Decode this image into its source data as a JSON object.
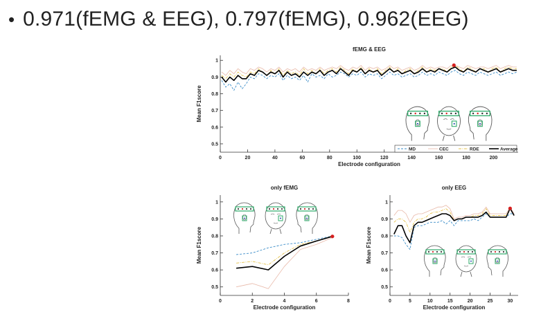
{
  "slide": {
    "bullet": "•",
    "title": "0.971(fEMG & EEG), 0.797(fEMG), 0.962(EEG)"
  },
  "colors": {
    "MD": "#3a8cc8",
    "CEC": "#e8b8a8",
    "RDE": "#e6c24a",
    "Average": "#000000",
    "highlight": "#d62020",
    "electrode_box": "#2eaa6a"
  },
  "icons": [
    "head-side-left-icon",
    "head-front-icon",
    "head-side-right-icon"
  ],
  "chart_data": [
    {
      "id": "combined",
      "type": "line",
      "title": "fEMG & EEG",
      "xlabel": "Electrode configuration",
      "ylabel": "Mean F1score",
      "xlim": [
        0,
        218
      ],
      "ylim": [
        0.45,
        1.03
      ],
      "xticks": [
        0,
        20,
        40,
        60,
        80,
        100,
        120,
        140,
        160,
        180,
        200
      ],
      "yticks": [
        0.5,
        0.6,
        0.7,
        0.8,
        0.9,
        1
      ],
      "ytick_labels": [
        "0.5",
        "0.6",
        "0.7",
        "0.8",
        "0.9",
        "1"
      ],
      "legend": {
        "position": "bottom-right",
        "entries": [
          "MD",
          "CEC",
          "RDE",
          "Average"
        ]
      },
      "highlight": {
        "x": 171,
        "y": 0.971
      },
      "series": [
        {
          "name": "MD",
          "style": "dashed",
          "x": [
            1,
            4,
            7,
            10,
            13,
            16,
            19,
            22,
            25,
            28,
            31,
            34,
            37,
            40,
            43,
            46,
            49,
            52,
            55,
            58,
            61,
            64,
            67,
            70,
            73,
            76,
            79,
            82,
            85,
            88,
            91,
            94,
            97,
            100,
            103,
            106,
            109,
            112,
            115,
            118,
            121,
            124,
            127,
            130,
            133,
            136,
            139,
            142,
            145,
            148,
            151,
            154,
            157,
            160,
            163,
            166,
            169,
            172,
            175,
            178,
            181,
            184,
            187,
            190,
            193,
            196,
            199,
            202,
            205,
            208,
            211,
            214,
            217
          ],
          "y": [
            0.88,
            0.84,
            0.86,
            0.82,
            0.87,
            0.83,
            0.86,
            0.9,
            0.89,
            0.92,
            0.91,
            0.89,
            0.91,
            0.9,
            0.92,
            0.88,
            0.91,
            0.89,
            0.9,
            0.88,
            0.91,
            0.87,
            0.92,
            0.9,
            0.91,
            0.89,
            0.92,
            0.9,
            0.91,
            0.93,
            0.92,
            0.9,
            0.92,
            0.91,
            0.93,
            0.9,
            0.92,
            0.91,
            0.92,
            0.89,
            0.91,
            0.93,
            0.91,
            0.92,
            0.9,
            0.91,
            0.92,
            0.9,
            0.91,
            0.93,
            0.91,
            0.92,
            0.91,
            0.93,
            0.92,
            0.91,
            0.93,
            0.94,
            0.92,
            0.91,
            0.93,
            0.92,
            0.91,
            0.93,
            0.92,
            0.91,
            0.92,
            0.93,
            0.91,
            0.92,
            0.93,
            0.92,
            0.93
          ]
        },
        {
          "name": "CEC",
          "style": "solid",
          "x": [
            1,
            4,
            7,
            10,
            13,
            16,
            19,
            22,
            25,
            28,
            31,
            34,
            37,
            40,
            43,
            46,
            49,
            52,
            55,
            58,
            61,
            64,
            67,
            70,
            73,
            76,
            79,
            82,
            85,
            88,
            91,
            94,
            97,
            100,
            103,
            106,
            109,
            112,
            115,
            118,
            121,
            124,
            127,
            130,
            133,
            136,
            139,
            142,
            145,
            148,
            151,
            154,
            157,
            160,
            163,
            166,
            169,
            172,
            175,
            178,
            181,
            184,
            187,
            190,
            193,
            196,
            199,
            202,
            205,
            208,
            211,
            214,
            217
          ],
          "y": [
            0.93,
            0.91,
            0.94,
            0.92,
            0.95,
            0.93,
            0.92,
            0.95,
            0.94,
            0.96,
            0.95,
            0.93,
            0.95,
            0.94,
            0.96,
            0.93,
            0.95,
            0.94,
            0.95,
            0.93,
            0.96,
            0.94,
            0.95,
            0.94,
            0.96,
            0.94,
            0.95,
            0.96,
            0.95,
            0.97,
            0.95,
            0.94,
            0.96,
            0.95,
            0.97,
            0.94,
            0.96,
            0.95,
            0.96,
            0.94,
            0.95,
            0.97,
            0.95,
            0.96,
            0.94,
            0.95,
            0.96,
            0.94,
            0.95,
            0.97,
            0.95,
            0.96,
            0.95,
            0.96,
            0.96,
            0.95,
            0.97,
            0.97,
            0.96,
            0.95,
            0.97,
            0.96,
            0.95,
            0.96,
            0.96,
            0.95,
            0.96,
            0.97,
            0.95,
            0.96,
            0.97,
            0.96,
            0.96
          ]
        },
        {
          "name": "RDE",
          "style": "dash-dot",
          "x": [
            1,
            4,
            7,
            10,
            13,
            16,
            19,
            22,
            25,
            28,
            31,
            34,
            37,
            40,
            43,
            46,
            49,
            52,
            55,
            58,
            61,
            64,
            67,
            70,
            73,
            76,
            79,
            82,
            85,
            88,
            91,
            94,
            97,
            100,
            103,
            106,
            109,
            112,
            115,
            118,
            121,
            124,
            127,
            130,
            133,
            136,
            139,
            142,
            145,
            148,
            151,
            154,
            157,
            160,
            163,
            166,
            169,
            172,
            175,
            178,
            181,
            184,
            187,
            190,
            193,
            196,
            199,
            202,
            205,
            208,
            211,
            214,
            217
          ],
          "y": [
            0.91,
            0.89,
            0.92,
            0.9,
            0.93,
            0.91,
            0.9,
            0.93,
            0.92,
            0.95,
            0.93,
            0.91,
            0.94,
            0.92,
            0.95,
            0.91,
            0.94,
            0.92,
            0.93,
            0.91,
            0.95,
            0.92,
            0.94,
            0.92,
            0.95,
            0.92,
            0.94,
            0.95,
            0.93,
            0.96,
            0.94,
            0.92,
            0.95,
            0.93,
            0.96,
            0.92,
            0.95,
            0.93,
            0.95,
            0.92,
            0.94,
            0.96,
            0.93,
            0.95,
            0.92,
            0.94,
            0.95,
            0.92,
            0.94,
            0.96,
            0.93,
            0.95,
            0.94,
            0.95,
            0.95,
            0.93,
            0.96,
            0.97,
            0.95,
            0.93,
            0.96,
            0.95,
            0.93,
            0.95,
            0.95,
            0.93,
            0.95,
            0.96,
            0.93,
            0.95,
            0.96,
            0.95,
            0.95
          ]
        },
        {
          "name": "Average",
          "style": "solid-thick",
          "x": [
            1,
            4,
            7,
            10,
            13,
            16,
            19,
            22,
            25,
            28,
            31,
            34,
            37,
            40,
            43,
            46,
            49,
            52,
            55,
            58,
            61,
            64,
            67,
            70,
            73,
            76,
            79,
            82,
            85,
            88,
            91,
            94,
            97,
            100,
            103,
            106,
            109,
            112,
            115,
            118,
            121,
            124,
            127,
            130,
            133,
            136,
            139,
            142,
            145,
            148,
            151,
            154,
            157,
            160,
            163,
            166,
            169,
            172,
            175,
            178,
            181,
            184,
            187,
            190,
            193,
            196,
            199,
            202,
            205,
            208,
            211,
            214,
            217
          ],
          "y": [
            0.9,
            0.87,
            0.9,
            0.88,
            0.91,
            0.89,
            0.89,
            0.92,
            0.91,
            0.94,
            0.93,
            0.91,
            0.93,
            0.92,
            0.94,
            0.9,
            0.93,
            0.91,
            0.92,
            0.9,
            0.93,
            0.91,
            0.93,
            0.92,
            0.94,
            0.91,
            0.93,
            0.94,
            0.92,
            0.95,
            0.93,
            0.91,
            0.94,
            0.93,
            0.95,
            0.92,
            0.94,
            0.93,
            0.94,
            0.91,
            0.93,
            0.95,
            0.93,
            0.94,
            0.92,
            0.93,
            0.94,
            0.92,
            0.93,
            0.95,
            0.93,
            0.94,
            0.93,
            0.95,
            0.94,
            0.93,
            0.95,
            0.96,
            0.94,
            0.93,
            0.95,
            0.94,
            0.93,
            0.95,
            0.94,
            0.93,
            0.94,
            0.95,
            0.93,
            0.94,
            0.95,
            0.94,
            0.94
          ]
        }
      ]
    },
    {
      "id": "femg",
      "type": "line",
      "title": "only fEMG",
      "xlabel": "Electrode configuration",
      "ylabel": "Mean F1score",
      "xlim": [
        0,
        8
      ],
      "ylim": [
        0.45,
        1.04
      ],
      "xticks": [
        0,
        2,
        4,
        6,
        8
      ],
      "yticks": [
        0.5,
        0.6,
        0.7,
        0.8,
        0.9,
        1
      ],
      "ytick_labels": [
        "0.5",
        "0.6",
        "0.7",
        "0.8",
        "0.9",
        "1"
      ],
      "highlight": {
        "x": 7,
        "y": 0.797
      },
      "series": [
        {
          "name": "MD",
          "style": "dashed",
          "x": [
            1,
            2,
            3,
            4,
            5,
            6,
            7
          ],
          "y": [
            0.69,
            0.7,
            0.73,
            0.75,
            0.76,
            0.78,
            0.8
          ]
        },
        {
          "name": "CEC",
          "style": "solid",
          "x": [
            1,
            2,
            3,
            4,
            5,
            6,
            7
          ],
          "y": [
            0.5,
            0.52,
            0.49,
            0.62,
            0.72,
            0.75,
            0.79
          ]
        },
        {
          "name": "RDE",
          "style": "dash-dot",
          "x": [
            1,
            2,
            3,
            4,
            5,
            6,
            7
          ],
          "y": [
            0.64,
            0.65,
            0.63,
            0.7,
            0.75,
            0.77,
            0.8
          ]
        },
        {
          "name": "Average",
          "style": "solid-thick",
          "x": [
            1,
            2,
            3,
            4,
            5,
            6,
            7
          ],
          "y": [
            0.61,
            0.62,
            0.6,
            0.68,
            0.74,
            0.77,
            0.797
          ]
        }
      ]
    },
    {
      "id": "eeg",
      "type": "line",
      "title": "only EEG",
      "xlabel": "Electrode configuration",
      "ylabel": "Mean F1score",
      "xlim": [
        0,
        32
      ],
      "ylim": [
        0.45,
        1.04
      ],
      "xticks": [
        0,
        5,
        10,
        15,
        20,
        25,
        30
      ],
      "yticks": [
        0.5,
        0.6,
        0.7,
        0.8,
        0.9,
        1
      ],
      "ytick_labels": [
        "0.5",
        "0.6",
        "0.7",
        "0.8",
        "0.9",
        "1"
      ],
      "highlight": {
        "x": 30,
        "y": 0.962
      },
      "series": [
        {
          "name": "MD",
          "style": "dashed",
          "x": [
            1,
            2,
            3,
            4,
            5,
            6,
            7,
            8,
            9,
            10,
            11,
            12,
            13,
            14,
            15,
            16,
            17,
            18,
            19,
            20,
            21,
            22,
            23,
            24,
            25,
            26,
            27,
            28,
            29,
            30,
            31
          ],
          "y": [
            0.8,
            0.8,
            0.79,
            0.75,
            0.72,
            0.85,
            0.86,
            0.86,
            0.87,
            0.88,
            0.88,
            0.88,
            0.89,
            0.87,
            0.89,
            0.86,
            0.89,
            0.89,
            0.89,
            0.89,
            0.9,
            0.89,
            0.91,
            0.93,
            0.91,
            0.91,
            0.91,
            0.91,
            0.91,
            0.93,
            0.93
          ]
        },
        {
          "name": "CEC",
          "style": "solid",
          "x": [
            1,
            2,
            3,
            4,
            5,
            6,
            7,
            8,
            9,
            10,
            11,
            12,
            13,
            14,
            15,
            16,
            17,
            18,
            19,
            20,
            21,
            22,
            23,
            24,
            25,
            26,
            27,
            28,
            29,
            30,
            31
          ],
          "y": [
            0.92,
            0.95,
            0.95,
            0.93,
            0.88,
            0.92,
            0.93,
            0.93,
            0.94,
            0.95,
            0.96,
            0.97,
            0.97,
            0.98,
            0.96,
            0.9,
            0.91,
            0.91,
            0.92,
            0.92,
            0.93,
            0.93,
            0.94,
            0.97,
            0.93,
            0.93,
            0.93,
            0.93,
            0.93,
            0.97,
            0.93
          ]
        },
        {
          "name": "RDE",
          "style": "dash-dot",
          "x": [
            1,
            2,
            3,
            4,
            5,
            6,
            7,
            8,
            9,
            10,
            11,
            12,
            13,
            14,
            15,
            16,
            17,
            18,
            19,
            20,
            21,
            22,
            23,
            24,
            25,
            26,
            27,
            28,
            29,
            30,
            31
          ],
          "y": [
            0.88,
            0.9,
            0.9,
            0.88,
            0.82,
            0.88,
            0.9,
            0.9,
            0.91,
            0.93,
            0.94,
            0.94,
            0.95,
            0.96,
            0.94,
            0.89,
            0.9,
            0.9,
            0.91,
            0.91,
            0.92,
            0.92,
            0.93,
            0.96,
            0.92,
            0.92,
            0.92,
            0.92,
            0.92,
            0.96,
            0.92
          ]
        },
        {
          "name": "Average",
          "style": "solid-thick",
          "x": [
            1,
            2,
            3,
            4,
            5,
            6,
            7,
            8,
            9,
            10,
            11,
            12,
            13,
            14,
            15,
            16,
            17,
            18,
            19,
            20,
            21,
            22,
            23,
            24,
            25,
            26,
            27,
            28,
            29,
            30,
            31
          ],
          "y": [
            0.81,
            0.86,
            0.86,
            0.8,
            0.76,
            0.86,
            0.88,
            0.88,
            0.89,
            0.9,
            0.91,
            0.92,
            0.93,
            0.93,
            0.92,
            0.89,
            0.9,
            0.9,
            0.91,
            0.91,
            0.91,
            0.91,
            0.92,
            0.94,
            0.91,
            0.91,
            0.91,
            0.91,
            0.91,
            0.962,
            0.92
          ]
        }
      ]
    }
  ]
}
